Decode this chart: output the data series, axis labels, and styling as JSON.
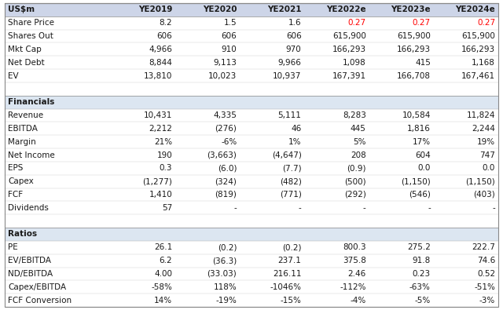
{
  "columns": [
    "US$m",
    "YE2019",
    "YE2020",
    "YE2021",
    "YE2022e",
    "YE2023e",
    "YE2024e"
  ],
  "header_bg": "#cdd5e8",
  "section_bg": "#dce6f1",
  "text_color_normal": "#1a1a1a",
  "text_color_red": "#ff0000",
  "font_size": 7.5,
  "header_font_size": 7.5,
  "rows": [
    {
      "label": "Share Price",
      "values": [
        "8.2",
        "1.5",
        "1.6",
        "0.27",
        "0.27",
        "0.27"
      ],
      "red_cols": [
        3,
        4,
        5
      ]
    },
    {
      "label": "Shares Out",
      "values": [
        "606",
        "606",
        "606",
        "615,900",
        "615,900",
        "615,900"
      ],
      "red_cols": []
    },
    {
      "label": "Mkt Cap",
      "values": [
        "4,966",
        "910",
        "970",
        "166,293",
        "166,293",
        "166,293"
      ],
      "red_cols": []
    },
    {
      "label": "Net Debt",
      "values": [
        "8,844",
        "9,113",
        "9,966",
        "1,098",
        "415",
        "1,168"
      ],
      "red_cols": []
    },
    {
      "label": "EV",
      "values": [
        "13,810",
        "10,023",
        "10,937",
        "167,391",
        "166,708",
        "167,461"
      ],
      "red_cols": []
    }
  ],
  "section_financials": "Financials",
  "rows_financials": [
    {
      "label": "Revenue",
      "values": [
        "10,431",
        "4,335",
        "5,111",
        "8,283",
        "10,584",
        "11,824"
      ],
      "red_cols": []
    },
    {
      "label": "EBITDA",
      "values": [
        "2,212",
        "(276)",
        "46",
        "445",
        "1,816",
        "2,244"
      ],
      "red_cols": []
    },
    {
      "label": "Margin",
      "values": [
        "21%",
        "-6%",
        "1%",
        "5%",
        "17%",
        "19%"
      ],
      "red_cols": []
    },
    {
      "label": "Net Income",
      "values": [
        "190",
        "(3,663)",
        "(4,647)",
        "208",
        "604",
        "747"
      ],
      "red_cols": []
    },
    {
      "label": "EPS",
      "values": [
        "0.3",
        "(6.0)",
        "(7.7)",
        "(0.9)",
        "0.0",
        "0.0"
      ],
      "red_cols": []
    },
    {
      "label": "Capex",
      "values": [
        "(1,277)",
        "(324)",
        "(482)",
        "(500)",
        "(1,150)",
        "(1,150)"
      ],
      "red_cols": []
    },
    {
      "label": "FCF",
      "values": [
        "1,410",
        "(819)",
        "(771)",
        "(292)",
        "(546)",
        "(403)"
      ],
      "red_cols": []
    },
    {
      "label": "Dividends",
      "values": [
        "57",
        "-",
        "-",
        "-",
        "-",
        "-"
      ],
      "red_cols": []
    }
  ],
  "section_ratios": "Ratios",
  "rows_ratios": [
    {
      "label": "PE",
      "values": [
        "26.1",
        "(0.2)",
        "(0.2)",
        "800.3",
        "275.2",
        "222.7"
      ],
      "red_cols": []
    },
    {
      "label": "EV/EBITDA",
      "values": [
        "6.2",
        "(36.3)",
        "237.1",
        "375.8",
        "91.8",
        "74.6"
      ],
      "red_cols": []
    },
    {
      "label": "ND/EBITDA",
      "values": [
        "4.00",
        "(33.03)",
        "216.11",
        "2.46",
        "0.23",
        "0.52"
      ],
      "red_cols": []
    },
    {
      "label": "Capex/EBITDA",
      "values": [
        "-58%",
        "118%",
        "-1046%",
        "-112%",
        "-63%",
        "-51%"
      ],
      "red_cols": []
    },
    {
      "label": "FCF Conversion",
      "values": [
        "14%",
        "-19%",
        "-15%",
        "-4%",
        "-5%",
        "-3%"
      ],
      "red_cols": []
    }
  ]
}
